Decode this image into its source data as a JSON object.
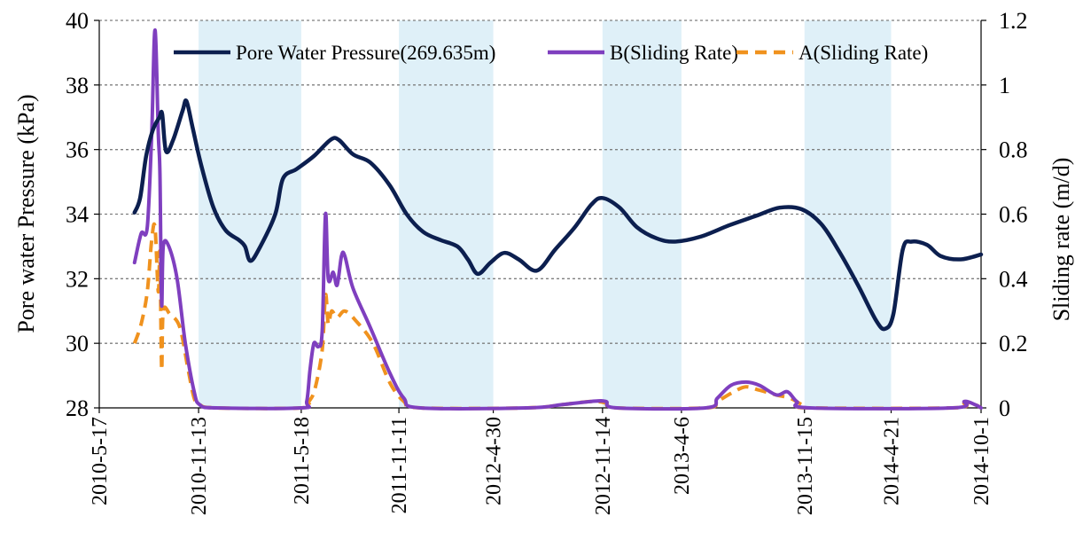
{
  "chart_data": {
    "type": "line",
    "title": "",
    "xlabel": "",
    "ylabel": "Pore water Pressure (kPa)",
    "y2label": "Sliding rate (m/d)",
    "ylim": [
      28,
      40
    ],
    "y2lim": [
      0,
      1.2
    ],
    "yticks": [
      "28",
      "30",
      "32",
      "34",
      "36",
      "38",
      "40"
    ],
    "y2ticks": [
      "0",
      "0.2",
      "0.4",
      "0.6",
      "0.8",
      "1",
      "1.2"
    ],
    "xlim": [
      "2010-05-17",
      "2014-10-01"
    ],
    "xticks": [
      "2010-5-17",
      "2010-11-13",
      "2011-5-18",
      "2011-11-11",
      "2012-4-30",
      "2012-11-14",
      "2013-4-6",
      "2013-11-15",
      "2014-4-21",
      "2014-10-1"
    ],
    "grid": "horizontal",
    "legend_position": "top",
    "shaded_periods": [
      [
        "2010-11-13",
        "2011-05-18"
      ],
      [
        "2011-11-11",
        "2012-04-30"
      ],
      [
        "2012-11-14",
        "2013-04-06"
      ],
      [
        "2013-11-15",
        "2014-04-21"
      ]
    ],
    "series": [
      {
        "name": "Pore Water Pressure(269.635m)",
        "axis": "left",
        "style": "solid",
        "color": "#0c1f4f",
        "points": [
          [
            "2010-07-20",
            34.05
          ],
          [
            "2010-07-30",
            34.5
          ],
          [
            "2010-08-10",
            35.8
          ],
          [
            "2010-08-22",
            36.6
          ],
          [
            "2010-09-03",
            37.0
          ],
          [
            "2010-09-08",
            37.1
          ],
          [
            "2010-09-15",
            35.95
          ],
          [
            "2010-09-28",
            36.3
          ],
          [
            "2010-10-15",
            37.2
          ],
          [
            "2010-10-22",
            37.5
          ],
          [
            "2010-11-02",
            36.7
          ],
          [
            "2010-11-18",
            35.5
          ],
          [
            "2010-12-10",
            34.2
          ],
          [
            "2011-01-01",
            33.5
          ],
          [
            "2011-01-25",
            33.2
          ],
          [
            "2011-02-05",
            33.0
          ],
          [
            "2011-02-15",
            32.55
          ],
          [
            "2011-03-05",
            33.0
          ],
          [
            "2011-04-01",
            34.0
          ],
          [
            "2011-04-15",
            35.1
          ],
          [
            "2011-05-10",
            35.4
          ],
          [
            "2011-06-10",
            35.8
          ],
          [
            "2011-07-10",
            36.3
          ],
          [
            "2011-07-25",
            36.3
          ],
          [
            "2011-08-20",
            35.85
          ],
          [
            "2011-09-20",
            35.6
          ],
          [
            "2011-10-25",
            34.9
          ],
          [
            "2011-11-25",
            34.0
          ],
          [
            "2011-12-25",
            33.45
          ],
          [
            "2012-01-25",
            33.2
          ],
          [
            "2012-02-25",
            33.0
          ],
          [
            "2012-03-15",
            32.6
          ],
          [
            "2012-04-02",
            32.15
          ],
          [
            "2012-04-25",
            32.5
          ],
          [
            "2012-05-20",
            32.8
          ],
          [
            "2012-06-15",
            32.6
          ],
          [
            "2012-07-18",
            32.25
          ],
          [
            "2012-08-20",
            32.9
          ],
          [
            "2012-09-25",
            33.6
          ],
          [
            "2012-10-25",
            34.3
          ],
          [
            "2012-11-14",
            34.5
          ],
          [
            "2012-12-15",
            34.2
          ],
          [
            "2013-01-15",
            33.6
          ],
          [
            "2013-02-20",
            33.25
          ],
          [
            "2013-03-25",
            33.15
          ],
          [
            "2013-05-10",
            33.3
          ],
          [
            "2013-07-01",
            33.65
          ],
          [
            "2013-08-20",
            33.95
          ],
          [
            "2013-10-01",
            34.2
          ],
          [
            "2013-11-10",
            34.15
          ],
          [
            "2013-12-15",
            33.7
          ],
          [
            "2014-01-15",
            32.9
          ],
          [
            "2014-02-20",
            31.8
          ],
          [
            "2014-03-25",
            30.7
          ],
          [
            "2014-04-10",
            30.45
          ],
          [
            "2014-04-25",
            30.9
          ],
          [
            "2014-05-12",
            32.9
          ],
          [
            "2014-05-28",
            33.15
          ],
          [
            "2014-06-25",
            33.05
          ],
          [
            "2014-07-20",
            32.7
          ],
          [
            "2014-08-25",
            32.6
          ],
          [
            "2014-10-01",
            32.75
          ]
        ]
      },
      {
        "name": "B(Sliding Rate)",
        "axis": "right",
        "style": "solid",
        "color": "#7f3fbf",
        "points": [
          [
            "2010-07-20",
            0.45
          ],
          [
            "2010-08-01",
            0.54
          ],
          [
            "2010-08-12",
            0.56
          ],
          [
            "2010-08-20",
            0.85
          ],
          [
            "2010-08-26",
            1.17
          ],
          [
            "2010-09-01",
            0.85
          ],
          [
            "2010-09-04",
            0.72
          ],
          [
            "2010-09-07",
            0.32
          ],
          [
            "2010-09-10",
            0.5
          ],
          [
            "2010-09-20",
            0.5
          ],
          [
            "2010-10-05",
            0.4
          ],
          [
            "2010-10-20",
            0.2
          ],
          [
            "2010-11-05",
            0.05
          ],
          [
            "2010-11-15",
            0.01
          ],
          [
            "2010-12-15",
            0.0
          ],
          [
            "2011-05-18",
            0.0
          ],
          [
            "2011-05-28",
            0.02
          ],
          [
            "2011-06-03",
            0.12
          ],
          [
            "2011-06-10",
            0.2
          ],
          [
            "2011-06-18",
            0.19
          ],
          [
            "2011-06-25",
            0.24
          ],
          [
            "2011-07-01",
            0.6
          ],
          [
            "2011-07-06",
            0.4
          ],
          [
            "2011-07-15",
            0.42
          ],
          [
            "2011-07-22",
            0.38
          ],
          [
            "2011-07-30",
            0.47
          ],
          [
            "2011-08-05",
            0.47
          ],
          [
            "2011-08-20",
            0.37
          ],
          [
            "2011-09-20",
            0.25
          ],
          [
            "2011-10-25",
            0.11
          ],
          [
            "2011-11-20",
            0.03
          ],
          [
            "2011-12-20",
            0.0
          ],
          [
            "2012-07-01",
            0.0
          ],
          [
            "2012-09-01",
            0.01
          ],
          [
            "2012-10-25",
            0.02
          ],
          [
            "2012-11-20",
            0.02
          ],
          [
            "2012-12-10",
            0.0
          ],
          [
            "2013-05-20",
            0.0
          ],
          [
            "2013-06-10",
            0.03
          ],
          [
            "2013-07-05",
            0.07
          ],
          [
            "2013-08-01",
            0.08
          ],
          [
            "2013-08-25",
            0.07
          ],
          [
            "2013-09-25",
            0.04
          ],
          [
            "2013-10-15",
            0.05
          ],
          [
            "2013-11-01",
            0.02
          ],
          [
            "2013-11-25",
            0.0
          ],
          [
            "2014-08-10",
            0.0
          ],
          [
            "2014-09-01",
            0.02
          ],
          [
            "2014-09-20",
            0.01
          ],
          [
            "2014-10-01",
            0.0
          ]
        ]
      },
      {
        "name": "A(Sliding Rate)",
        "axis": "right",
        "style": "dashed",
        "color": "#f0921e",
        "points": [
          [
            "2010-07-20",
            0.2
          ],
          [
            "2010-08-01",
            0.26
          ],
          [
            "2010-08-12",
            0.36
          ],
          [
            "2010-08-20",
            0.52
          ],
          [
            "2010-08-26",
            0.56
          ],
          [
            "2010-09-01",
            0.36
          ],
          [
            "2010-09-04",
            0.48
          ],
          [
            "2010-09-07",
            0.12
          ],
          [
            "2010-09-10",
            0.3
          ],
          [
            "2010-09-22",
            0.29
          ],
          [
            "2010-10-10",
            0.25
          ],
          [
            "2010-10-25",
            0.12
          ],
          [
            "2010-11-05",
            0.03
          ],
          [
            "2010-11-15",
            0.01
          ],
          [
            "2010-12-15",
            0.0
          ],
          [
            "2011-05-18",
            0.0
          ],
          [
            "2011-06-01",
            0.02
          ],
          [
            "2011-06-12",
            0.06
          ],
          [
            "2011-06-25",
            0.18
          ],
          [
            "2011-07-01",
            0.35
          ],
          [
            "2011-07-06",
            0.26
          ],
          [
            "2011-07-12",
            0.3
          ],
          [
            "2011-07-22",
            0.28
          ],
          [
            "2011-08-05",
            0.3
          ],
          [
            "2011-08-25",
            0.27
          ],
          [
            "2011-09-25",
            0.2
          ],
          [
            "2011-10-25",
            0.08
          ],
          [
            "2011-11-20",
            0.02
          ],
          [
            "2011-12-20",
            0.0
          ],
          [
            "2012-07-01",
            0.0
          ],
          [
            "2012-09-01",
            0.01
          ],
          [
            "2012-10-25",
            0.02
          ],
          [
            "2012-11-20",
            0.015
          ],
          [
            "2012-12-10",
            0.0
          ],
          [
            "2013-05-20",
            0.0
          ],
          [
            "2013-06-10",
            0.02
          ],
          [
            "2013-07-10",
            0.05
          ],
          [
            "2013-08-01",
            0.065
          ],
          [
            "2013-08-25",
            0.055
          ],
          [
            "2013-09-25",
            0.04
          ],
          [
            "2013-10-20",
            0.03
          ],
          [
            "2013-11-10",
            0.01
          ],
          [
            "2013-11-25",
            0.0
          ],
          [
            "2014-08-10",
            0.0
          ],
          [
            "2014-09-01",
            0.015
          ],
          [
            "2014-09-20",
            0.01
          ],
          [
            "2014-10-01",
            0.0
          ]
        ]
      }
    ]
  }
}
